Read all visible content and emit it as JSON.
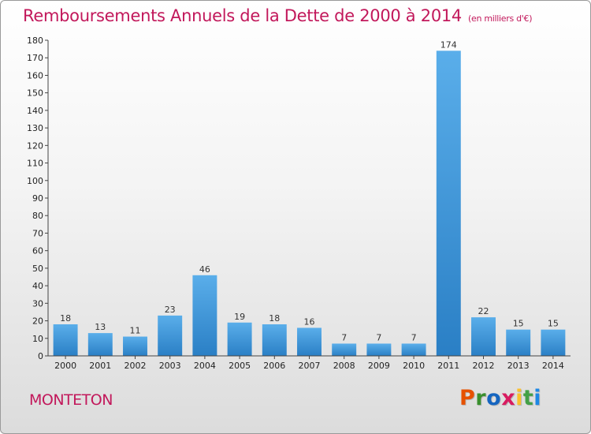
{
  "title": "Remboursements Annuels de la Dette de 2000 à 2014",
  "unit": "(en milliers d'€)",
  "commune": "MONTETON",
  "logo": {
    "letters": [
      "P",
      "r",
      "o",
      "x",
      "i",
      "t",
      "i"
    ],
    "colors": [
      "#e65100",
      "#3a8f2e",
      "#1565c0",
      "#d81b60",
      "#fbc02d",
      "#43a047",
      "#1e88e5"
    ]
  },
  "colors": {
    "bar_light": "#5aaeea",
    "bar_dark": "#2a7fc5",
    "title": "#c2185b"
  },
  "chart_data": {
    "type": "bar",
    "title": "Remboursements Annuels de la Dette de 2000 à 2014",
    "xlabel": "",
    "ylabel": "",
    "categories": [
      "2000",
      "2001",
      "2002",
      "2003",
      "2004",
      "2005",
      "2006",
      "2007",
      "2008",
      "2009",
      "2010",
      "2011",
      "2012",
      "2013",
      "2014"
    ],
    "values": [
      18,
      13,
      11,
      23,
      46,
      19,
      18,
      16,
      7,
      7,
      7,
      174,
      22,
      15,
      15
    ],
    "ylim": [
      0,
      180
    ],
    "yticks": [
      0,
      10,
      20,
      30,
      40,
      50,
      60,
      70,
      80,
      90,
      100,
      110,
      120,
      130,
      140,
      150,
      160,
      170,
      180
    ],
    "grid": false,
    "legend": "none"
  }
}
